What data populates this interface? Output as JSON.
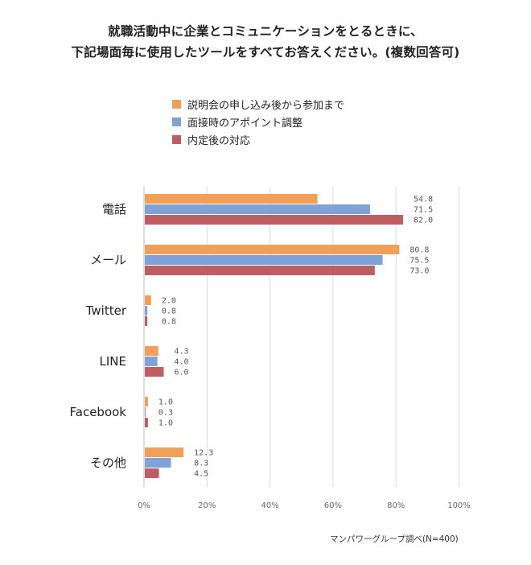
{
  "title": {
    "line1": "就職活動中に企業とコミュニケーションをとるときに、",
    "line2": "下記場面毎に使用したツールをすべてお答えください。(複数回答可)"
  },
  "source": "マンパワーグループ調べ(N=400)",
  "colors": {
    "series1": "#F0A058",
    "series2": "#7FA3D6",
    "series3": "#BE5E62",
    "grid": "#D9D9D9",
    "axis_text": "#666666"
  },
  "chart_data": {
    "type": "bar",
    "orientation": "horizontal",
    "categories": [
      "電話",
      "メール",
      "Twitter",
      "LINE",
      "Facebook",
      "その他"
    ],
    "series": [
      {
        "name": "説明会の申し込み後から参加まで",
        "values": [
          54.8,
          80.8,
          2.0,
          4.3,
          1.0,
          12.3
        ]
      },
      {
        "name": "面接時のアポイント調整",
        "values": [
          71.5,
          75.5,
          0.8,
          4.0,
          0.3,
          8.3
        ]
      },
      {
        "name": "内定後の対応",
        "values": [
          82.0,
          73.0,
          0.8,
          6.0,
          1.0,
          4.5
        ]
      }
    ],
    "xlim": [
      0,
      100
    ],
    "xticks": [
      "0%",
      "20%",
      "40%",
      "60%",
      "80%",
      "100%"
    ],
    "grid": true,
    "legend": "top"
  }
}
